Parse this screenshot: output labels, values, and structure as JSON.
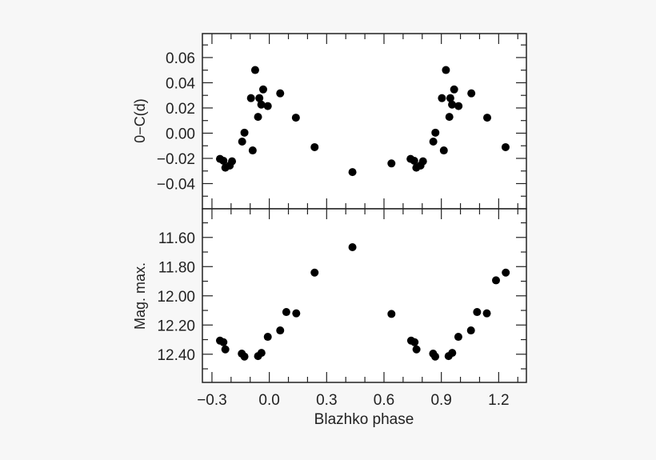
{
  "chart_data": [
    {
      "type": "scatter",
      "panel": "top",
      "xlabel": "Blazhko phase",
      "ylabel": "0−C(d)",
      "xlim": [
        -0.35,
        1.345
      ],
      "ylim": [
        -0.06,
        0.079
      ],
      "y_inverted": false,
      "grid": false,
      "y_ticks": [
        0.06,
        0.04,
        0.02,
        0.0,
        -0.02,
        -0.04
      ],
      "y_tick_labels": [
        "0.06",
        "0.04",
        "0.02",
        "0.00",
        "−0.02",
        "−0.04"
      ],
      "points": [
        [
          -0.258,
          -0.0204
        ],
        [
          -0.24,
          -0.0219
        ],
        [
          -0.23,
          -0.0274
        ],
        [
          -0.207,
          -0.0257
        ],
        [
          -0.195,
          -0.0223
        ],
        [
          -0.142,
          -0.0067
        ],
        [
          -0.13,
          0.0004
        ],
        [
          -0.087,
          -0.0137
        ],
        [
          -0.096,
          0.0278
        ],
        [
          -0.074,
          0.0501
        ],
        [
          -0.059,
          0.0129
        ],
        [
          -0.052,
          0.0278
        ],
        [
          -0.042,
          0.0227
        ],
        [
          -0.032,
          0.0347
        ],
        [
          -0.008,
          0.0215
        ],
        [
          0.057,
          0.0316
        ],
        [
          0.139,
          0.0123
        ],
        [
          0.237,
          -0.0111
        ],
        [
          0.435,
          -0.0309
        ],
        [
          0.639,
          -0.024
        ],
        [
          0.739,
          -0.0204
        ],
        [
          0.758,
          -0.0219
        ],
        [
          0.769,
          -0.0274
        ],
        [
          0.791,
          -0.0257
        ],
        [
          0.804,
          -0.0223
        ],
        [
          0.858,
          -0.0067
        ],
        [
          0.869,
          0.0004
        ],
        [
          0.913,
          -0.0137
        ],
        [
          0.903,
          0.0278
        ],
        [
          0.924,
          0.0501
        ],
        [
          0.942,
          0.0129
        ],
        [
          0.947,
          0.0278
        ],
        [
          0.956,
          0.0227
        ],
        [
          0.967,
          0.0347
        ],
        [
          0.99,
          0.0215
        ],
        [
          1.057,
          0.0316
        ],
        [
          1.14,
          0.0123
        ],
        [
          1.236,
          -0.0111
        ]
      ]
    },
    {
      "type": "scatter",
      "panel": "bottom",
      "xlabel": "Blazhko phase",
      "ylabel": "Mag. max.",
      "xlim": [
        -0.35,
        1.345
      ],
      "ylim": [
        11.404,
        12.593
      ],
      "y_inverted": true,
      "grid": false,
      "x_ticks": [
        -0.3,
        0.0,
        0.3,
        0.6,
        0.9,
        1.2
      ],
      "x_tick_labels": [
        "−0.3",
        "0.0",
        "0.3",
        "0.6",
        "0.9",
        "1.2"
      ],
      "y_ticks": [
        11.6,
        11.8,
        12.0,
        12.2,
        12.4
      ],
      "y_tick_labels": [
        "11.60",
        "11.80",
        "12.00",
        "12.20",
        "12.40"
      ],
      "points": [
        [
          -0.258,
          12.307
        ],
        [
          -0.24,
          12.318
        ],
        [
          -0.23,
          12.367
        ],
        [
          -0.144,
          12.396
        ],
        [
          -0.13,
          12.416
        ],
        [
          -0.059,
          12.413
        ],
        [
          -0.041,
          12.391
        ],
        [
          -0.008,
          12.281
        ],
        [
          0.057,
          12.237
        ],
        [
          0.089,
          12.111
        ],
        [
          0.141,
          12.12
        ],
        [
          0.237,
          11.841
        ],
        [
          0.435,
          11.667
        ],
        [
          0.639,
          12.124
        ],
        [
          0.742,
          12.307
        ],
        [
          0.76,
          12.318
        ],
        [
          0.77,
          12.367
        ],
        [
          0.857,
          12.396
        ],
        [
          0.868,
          12.416
        ],
        [
          0.938,
          12.413
        ],
        [
          0.957,
          12.391
        ],
        [
          0.989,
          12.281
        ],
        [
          1.055,
          12.237
        ],
        [
          1.087,
          12.111
        ],
        [
          1.138,
          12.12
        ],
        [
          1.186,
          11.894
        ],
        [
          1.237,
          11.841
        ]
      ]
    }
  ],
  "colors": {
    "marker": "#000000",
    "axes": "#222222",
    "background": "#f7f7f7",
    "plot_background": "#ffffff"
  }
}
